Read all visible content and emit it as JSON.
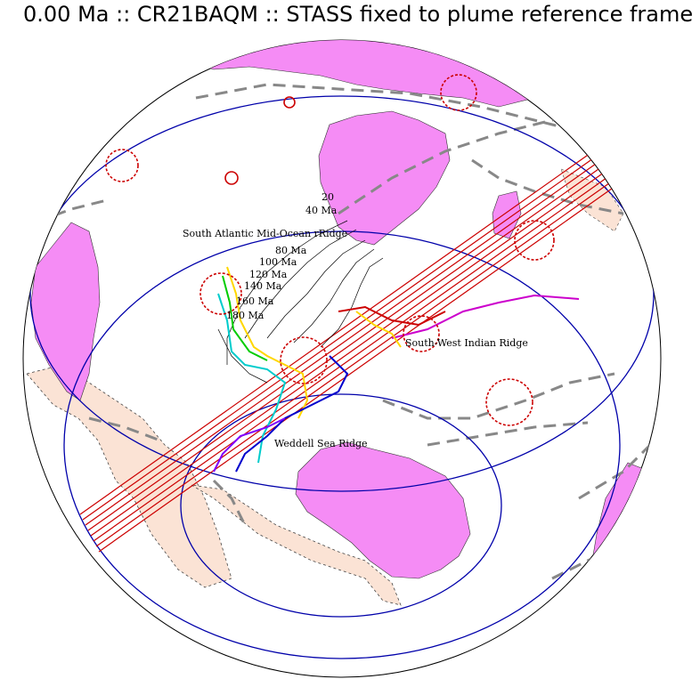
{
  "title": "0.00 Ma :: CR21BAQM :: STASS fixed to plume reference frame",
  "labels": {
    "south_atlantic": "South Atlantic Mid-Ocean rRidge",
    "sw_indian": "South-West Indian Ridge",
    "weddell": "Weddell Sea Ridge"
  },
  "age_labels": [
    "20",
    "40 Ma",
    "80 Ma",
    "100 Ma",
    "120 Ma",
    "140 Ma",
    "160 Ma",
    "180 Ma"
  ],
  "colors": {
    "continent": "#f58cf5",
    "shelf": "#fbe3d5",
    "plate_boundary": "#0000aa",
    "subduction_band": "#cc0000",
    "plume": "#cc0000",
    "dashed_boundary": "#808080"
  }
}
